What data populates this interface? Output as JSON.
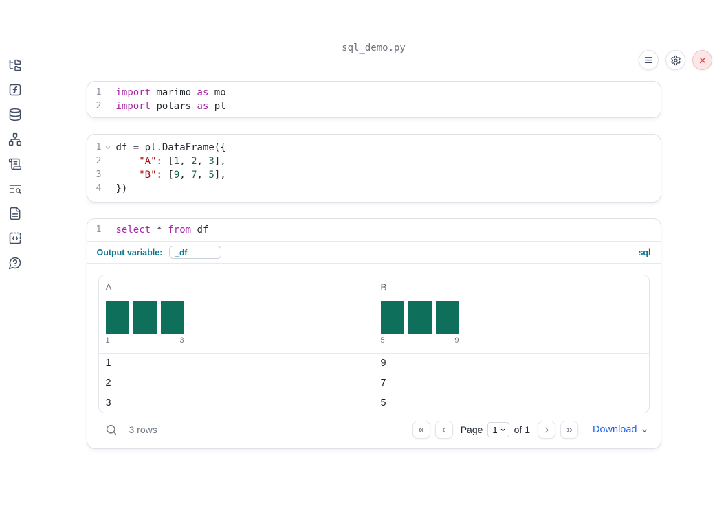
{
  "window": {
    "title": "sql_demo.py"
  },
  "topbar": {
    "icons": [
      "menu",
      "settings",
      "shutdown"
    ]
  },
  "sidebar": {
    "icons": [
      "file-tree",
      "function-square",
      "database",
      "dependency-network",
      "scroll-text",
      "logs-search",
      "document",
      "code-box",
      "help-bubble"
    ]
  },
  "colors": {
    "keyword": "#a626a4",
    "string": "#aa1111",
    "number": "#116644",
    "histogram_bar": "#0e6f5b",
    "accent_blue": "#0e7490",
    "link_blue": "#2563eb",
    "danger": "#d64545"
  },
  "cells": [
    {
      "type": "python",
      "lines": [
        {
          "num": "1",
          "tokens": [
            {
              "t": "import",
              "c": "kw"
            },
            {
              "t": " marimo ",
              "c": "pl"
            },
            {
              "t": "as",
              "c": "kw"
            },
            {
              "t": " mo",
              "c": "pl"
            }
          ]
        },
        {
          "num": "2",
          "tokens": [
            {
              "t": "import",
              "c": "kw"
            },
            {
              "t": " polars ",
              "c": "pl"
            },
            {
              "t": "as",
              "c": "kw"
            },
            {
              "t": " pl",
              "c": "pl"
            }
          ]
        }
      ]
    },
    {
      "type": "python",
      "lines": [
        {
          "num": "1",
          "fold": true,
          "tokens": [
            {
              "t": "df = pl.DataFrame({",
              "c": "pl"
            }
          ]
        },
        {
          "num": "2",
          "tokens": [
            {
              "t": "    ",
              "c": "pl"
            },
            {
              "t": "\"A\"",
              "c": "str"
            },
            {
              "t": ": [",
              "c": "pl"
            },
            {
              "t": "1",
              "c": "num"
            },
            {
              "t": ", ",
              "c": "pl"
            },
            {
              "t": "2",
              "c": "num"
            },
            {
              "t": ", ",
              "c": "pl"
            },
            {
              "t": "3",
              "c": "num"
            },
            {
              "t": "],",
              "c": "pl"
            }
          ]
        },
        {
          "num": "3",
          "tokens": [
            {
              "t": "    ",
              "c": "pl"
            },
            {
              "t": "\"B\"",
              "c": "str"
            },
            {
              "t": ": [",
              "c": "pl"
            },
            {
              "t": "9",
              "c": "num"
            },
            {
              "t": ", ",
              "c": "pl"
            },
            {
              "t": "7",
              "c": "num"
            },
            {
              "t": ", ",
              "c": "pl"
            },
            {
              "t": "5",
              "c": "num"
            },
            {
              "t": "],",
              "c": "pl"
            }
          ]
        },
        {
          "num": "4",
          "tokens": [
            {
              "t": "})",
              "c": "pl"
            }
          ]
        }
      ]
    },
    {
      "type": "sql",
      "lines": [
        {
          "num": "1",
          "tokens": [
            {
              "t": "select",
              "c": "kw"
            },
            {
              "t": " * ",
              "c": "pl"
            },
            {
              "t": "from",
              "c": "kw"
            },
            {
              "t": " df",
              "c": "pl"
            }
          ]
        }
      ]
    }
  ],
  "sql_cell": {
    "output_variable_label": "Output variable:",
    "output_variable_value": "_df",
    "language_badge": "sql"
  },
  "table": {
    "columns": [
      {
        "name": "A",
        "histogram": {
          "bar_count": 3,
          "min_label": "1",
          "max_label": "3"
        }
      },
      {
        "name": "B",
        "histogram": {
          "bar_count": 3,
          "min_label": "5",
          "max_label": "9"
        }
      }
    ],
    "rows": [
      [
        "1",
        "9"
      ],
      [
        "2",
        "7"
      ],
      [
        "3",
        "5"
      ]
    ],
    "footer": {
      "row_count_text": "3 rows",
      "page_label": "Page",
      "page_value": "1",
      "of_label": "of 1",
      "download_label": "Download"
    }
  }
}
